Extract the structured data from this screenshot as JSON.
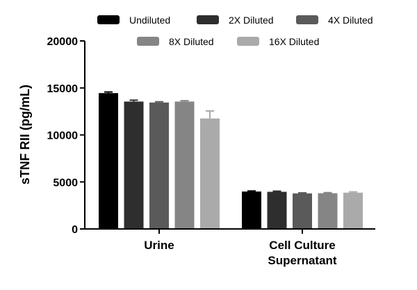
{
  "chart_data": {
    "type": "bar",
    "ylabel": "sTNF RII (pg/mL)",
    "xlabel": "",
    "ylim": [
      0,
      20000
    ],
    "yticks": [
      0,
      5000,
      10000,
      15000,
      20000
    ],
    "ytick_labels": [
      "0",
      "5000",
      "10000",
      "15000",
      "20000"
    ],
    "categories": [
      [
        "Urine"
      ],
      [
        "Cell Culture",
        "Supernatant"
      ]
    ],
    "series": [
      {
        "name": "Undiluted",
        "color": "#000000",
        "values": [
          14450,
          3980
        ],
        "errors": [
          120,
          60
        ]
      },
      {
        "name": "2X Diluted",
        "color": "#2e2e2e",
        "values": [
          13550,
          3950
        ],
        "errors": [
          150,
          70
        ]
      },
      {
        "name": "4X Diluted",
        "color": "#5a5a5a",
        "values": [
          13450,
          3780
        ],
        "errors": [
          80,
          60
        ]
      },
      {
        "name": "8X Diluted",
        "color": "#858585",
        "values": [
          13550,
          3800
        ],
        "errors": [
          90,
          60
        ]
      },
      {
        "name": "16X Diluted",
        "color": "#aaaaaa",
        "values": [
          11750,
          3860
        ],
        "errors": [
          800,
          80
        ]
      }
    ],
    "legend_position": "top",
    "grid": false
  }
}
